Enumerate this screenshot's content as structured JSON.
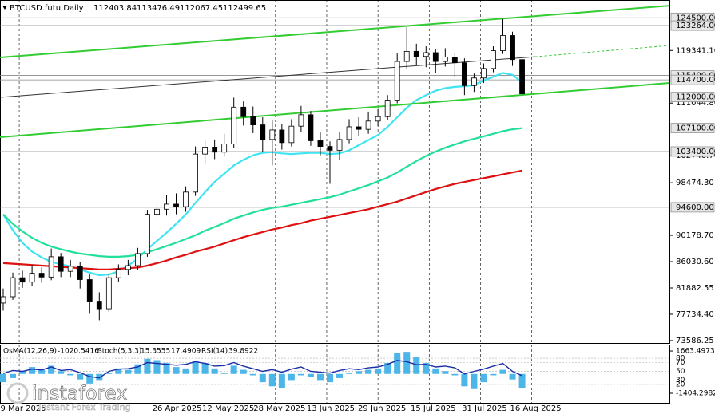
{
  "chart_data": [
    {
      "type": "candlestick",
      "title": "BTCUSD.futu,Daily",
      "ohlc_readout": [
        112403.84,
        113476.49,
        112067.45,
        112499.65
      ],
      "x": [
        "2025-03-04",
        "2025-03-07",
        "2025-03-10",
        "2025-03-13",
        "2025-03-16",
        "2025-03-19",
        "2025-03-22",
        "2025-03-25",
        "2025-03-28",
        "2025-03-31",
        "2025-04-03",
        "2025-04-06",
        "2025-04-09",
        "2025-04-12",
        "2025-04-15",
        "2025-04-18",
        "2025-04-21",
        "2025-04-24",
        "2025-04-27",
        "2025-04-30",
        "2025-05-03",
        "2025-05-06",
        "2025-05-09",
        "2025-05-12",
        "2025-05-15",
        "2025-05-18",
        "2025-05-21",
        "2025-05-24",
        "2025-05-27",
        "2025-05-30",
        "2025-06-02",
        "2025-06-05",
        "2025-06-08",
        "2025-06-11",
        "2025-06-14",
        "2025-06-17",
        "2025-06-20",
        "2025-06-23",
        "2025-06-26",
        "2025-06-29",
        "2025-07-02",
        "2025-07-05",
        "2025-07-08",
        "2025-07-11",
        "2025-07-14",
        "2025-07-17",
        "2025-07-20",
        "2025-07-23",
        "2025-07-26",
        "2025-07-29",
        "2025-08-01",
        "2025-08-04",
        "2025-08-07",
        "2025-08-10",
        "2025-08-13"
      ],
      "open": [
        79500,
        80500,
        83500,
        82800,
        84200,
        83600,
        86800,
        84500,
        85300,
        83200,
        79800,
        78600,
        83500,
        84800,
        85400,
        87300,
        93500,
        94300,
        95100,
        94700,
        97000,
        103000,
        104100,
        103300,
        104600,
        110400,
        108900,
        107600,
        105300,
        106800,
        104800,
        107400,
        109200,
        105100,
        104200,
        103600,
        105300,
        107300,
        106900,
        108200,
        108900,
        111500,
        117600,
        119200,
        118400,
        119000,
        117600,
        118300,
        117400,
        113800,
        115000,
        116500,
        119300,
        121700,
        117900
      ],
      "high": [
        81800,
        84300,
        84600,
        85500,
        85100,
        88100,
        87400,
        86300,
        86000,
        84000,
        81200,
        84200,
        85600,
        86300,
        88200,
        94200,
        95400,
        96500,
        96800,
        97900,
        104200,
        105100,
        105300,
        106200,
        111900,
        111300,
        110500,
        108800,
        108300,
        107700,
        108500,
        110600,
        109800,
        106400,
        105000,
        106400,
        108500,
        108800,
        109700,
        110100,
        112300,
        118900,
        123000,
        120400,
        120000,
        119600,
        119700,
        118900,
        118100,
        115700,
        117300,
        120000,
        124300,
        122300,
        118300
      ],
      "low": [
        78300,
        80000,
        81900,
        82200,
        82700,
        83100,
        83600,
        83600,
        81800,
        77800,
        76800,
        78100,
        82900,
        83900,
        84700,
        86800,
        92700,
        93300,
        93500,
        93900,
        96400,
        101400,
        102200,
        102600,
        104000,
        107500,
        106300,
        103400,
        101200,
        103700,
        104200,
        106500,
        104300,
        102800,
        98300,
        102000,
        104700,
        105900,
        106200,
        107400,
        108300,
        111000,
        116400,
        117000,
        116700,
        115800,
        116800,
        115200,
        112300,
        112800,
        114200,
        115900,
        118800,
        116900,
        112067.45
      ],
      "close": [
        80500,
        83500,
        82800,
        84200,
        83600,
        86800,
        84500,
        85300,
        83200,
        79800,
        78600,
        83500,
        84800,
        85400,
        87300,
        93500,
        94300,
        95100,
        94700,
        97000,
        103000,
        104100,
        103300,
        104600,
        110400,
        108900,
        107600,
        105300,
        106800,
        104800,
        107400,
        109200,
        105100,
        104200,
        103600,
        105300,
        107300,
        106900,
        108200,
        108900,
        111500,
        117600,
        119200,
        118400,
        119000,
        117600,
        118300,
        117400,
        113800,
        115000,
        116500,
        119300,
        121700,
        117900,
        112499.65
      ],
      "moving_averages": [
        {
          "color": "#3fe4f2",
          "values": [
            93500,
            91000,
            89000,
            87600,
            86700,
            86000,
            85600,
            85300,
            84800,
            84300,
            83900,
            84000,
            84500,
            85400,
            86500,
            88000,
            89300,
            90600,
            92000,
            93500,
            95300,
            97000,
            98600,
            99900,
            101200,
            102100,
            102800,
            103200,
            103300,
            103100,
            103000,
            103100,
            103200,
            103200,
            103000,
            103100,
            103600,
            104400,
            105200,
            106000,
            107300,
            108800,
            110300,
            111500,
            112300,
            113000,
            113400,
            113600,
            113700,
            113900,
            114600,
            115200,
            115800,
            115500,
            114300
          ]
        },
        {
          "color": "#22e09a",
          "values": [
            93500,
            92000,
            90800,
            89800,
            89000,
            88400,
            88000,
            87600,
            87300,
            87100,
            86900,
            86800,
            86800,
            86900,
            87100,
            87500,
            88000,
            88500,
            89000,
            89600,
            90200,
            90900,
            91500,
            92100,
            92800,
            93300,
            93800,
            94200,
            94500,
            94700,
            95000,
            95300,
            95600,
            95900,
            96200,
            96600,
            97100,
            97600,
            98100,
            98700,
            99300,
            100100,
            101000,
            101900,
            102700,
            103400,
            104000,
            104500,
            105000,
            105400,
            105800,
            106200,
            106600,
            106900,
            107100
          ]
        },
        {
          "color": "#dd1111",
          "values": [
            85800,
            85700,
            85600,
            85500,
            85400,
            85300,
            85200,
            85100,
            85000,
            84900,
            84800,
            84800,
            84900,
            85000,
            85100,
            85400,
            85800,
            86200,
            86700,
            87100,
            87600,
            88000,
            88400,
            88900,
            89400,
            89900,
            90300,
            90700,
            91100,
            91400,
            91800,
            92100,
            92500,
            92800,
            93100,
            93400,
            93700,
            94000,
            94300,
            94700,
            95100,
            95500,
            96000,
            96500,
            97000,
            97500,
            97900,
            98300,
            98600,
            98900,
            99200,
            99500,
            99800,
            100100,
            100400
          ]
        }
      ],
      "trendlines": [
        {
          "color": "#33cc33",
          "x": [
            "2025-03-03",
            "2025-09-28"
          ],
          "values": [
            118234,
            126409
          ]
        },
        {
          "color": "#333333",
          "x": [
            "2025-03-03",
            "2025-08-17"
          ],
          "values": [
            111945,
            118359
          ]
        },
        {
          "color": "#33cc33",
          "dashed": true,
          "x": [
            "2025-08-17",
            "2025-09-28"
          ],
          "values": [
            118359,
            120120
          ]
        },
        {
          "color": "#33cc33",
          "x": [
            "2025-03-03",
            "2025-09-28"
          ],
          "values": [
            105657,
            114209
          ]
        }
      ],
      "levels": [
        {
          "value": 124500,
          "label": "124500.00"
        },
        {
          "value": 123264,
          "label": "123264.00"
        },
        {
          "value": 115400,
          "label": "115400.00"
        },
        {
          "value": 114700,
          "label": "114700.00"
        },
        {
          "value": 112000,
          "label": "112000.00"
        },
        {
          "value": 107100,
          "label": "107100.00"
        },
        {
          "value": 103400,
          "label": "103400.00"
        },
        {
          "value": 94600,
          "label": "94600.00"
        }
      ],
      "xlim": [
        "2025-03-03",
        "2025-09-28"
      ],
      "xticks": [
        "9 Mar 2025",
        "26 Apr 2025",
        "12 May 2025",
        "28 May 2025",
        "13 Jun 2025",
        "29 Jun 2025",
        "15 Jul 2025",
        "31 Jul 2025",
        "16 Aug 2025"
      ],
      "ylim": [
        73200,
        127300
      ],
      "yticks": [
        {
          "value": 119341.1,
          "label": "119341.10"
        },
        {
          "value": 111044.8,
          "label": "111044.80"
        },
        {
          "value": 102746.7,
          "label": "102746.70"
        },
        {
          "value": 98474.3,
          "label": "98474.30"
        },
        {
          "value": 90178.7,
          "label": "90178.70"
        },
        {
          "value": 86030.6,
          "label": "86030.60"
        },
        81882.55,
        {
          "value": 77734.4,
          "label": "77734.40"
        },
        73586.25
      ]
    },
    {
      "type": "bar",
      "series": [
        {
          "name": "OsMA(12,26,9)",
          "color": "#4cb6e8",
          "values": [
            -600,
            -300,
            200,
            500,
            300,
            600,
            200,
            -100,
            -400,
            -700,
            -500,
            100,
            400,
            300,
            700,
            1100,
            1000,
            800,
            500,
            400,
            900,
            800,
            400,
            100,
            600,
            300,
            -100,
            -600,
            -900,
            -1000,
            -500,
            -100,
            -200,
            -500,
            -600,
            -300,
            100,
            200,
            300,
            400,
            800,
            1500,
            1600,
            1200,
            800,
            400,
            200,
            -100,
            -900,
            -1100,
            -600,
            -100,
            300,
            -400,
            -1020.5416
          ]
        },
        {
          "name": "RSI(14)",
          "type": "line",
          "axis": "y2",
          "color": "#1a2ea8",
          "values": [
            45,
            52,
            50,
            55,
            53,
            60,
            52,
            54,
            47,
            38,
            35,
            50,
            55,
            56,
            60,
            70,
            68,
            66,
            64,
            66,
            72,
            68,
            62,
            63,
            70,
            62,
            56,
            50,
            54,
            48,
            55,
            60,
            50,
            48,
            46,
            52,
            56,
            54,
            58,
            60,
            66,
            75,
            72,
            65,
            66,
            60,
            62,
            58,
            44,
            50,
            55,
            62,
            68,
            50,
            39.8922
          ]
        }
      ],
      "readouts": [
        {
          "name": "Stoch(5,3,3)",
          "values": [
            15.3555,
            17.4909
          ]
        }
      ],
      "ylim": [
        -2100,
        2130
      ],
      "yticks": [
        1663.4973,
        -1404.2982
      ],
      "y2lim": [
        -22,
        111
      ],
      "y2ticks": [
        80,
        70,
        50,
        30,
        20
      ]
    }
  ],
  "watermark": {
    "brand": "instaforex",
    "tagline": "Instant Forex Trading"
  }
}
